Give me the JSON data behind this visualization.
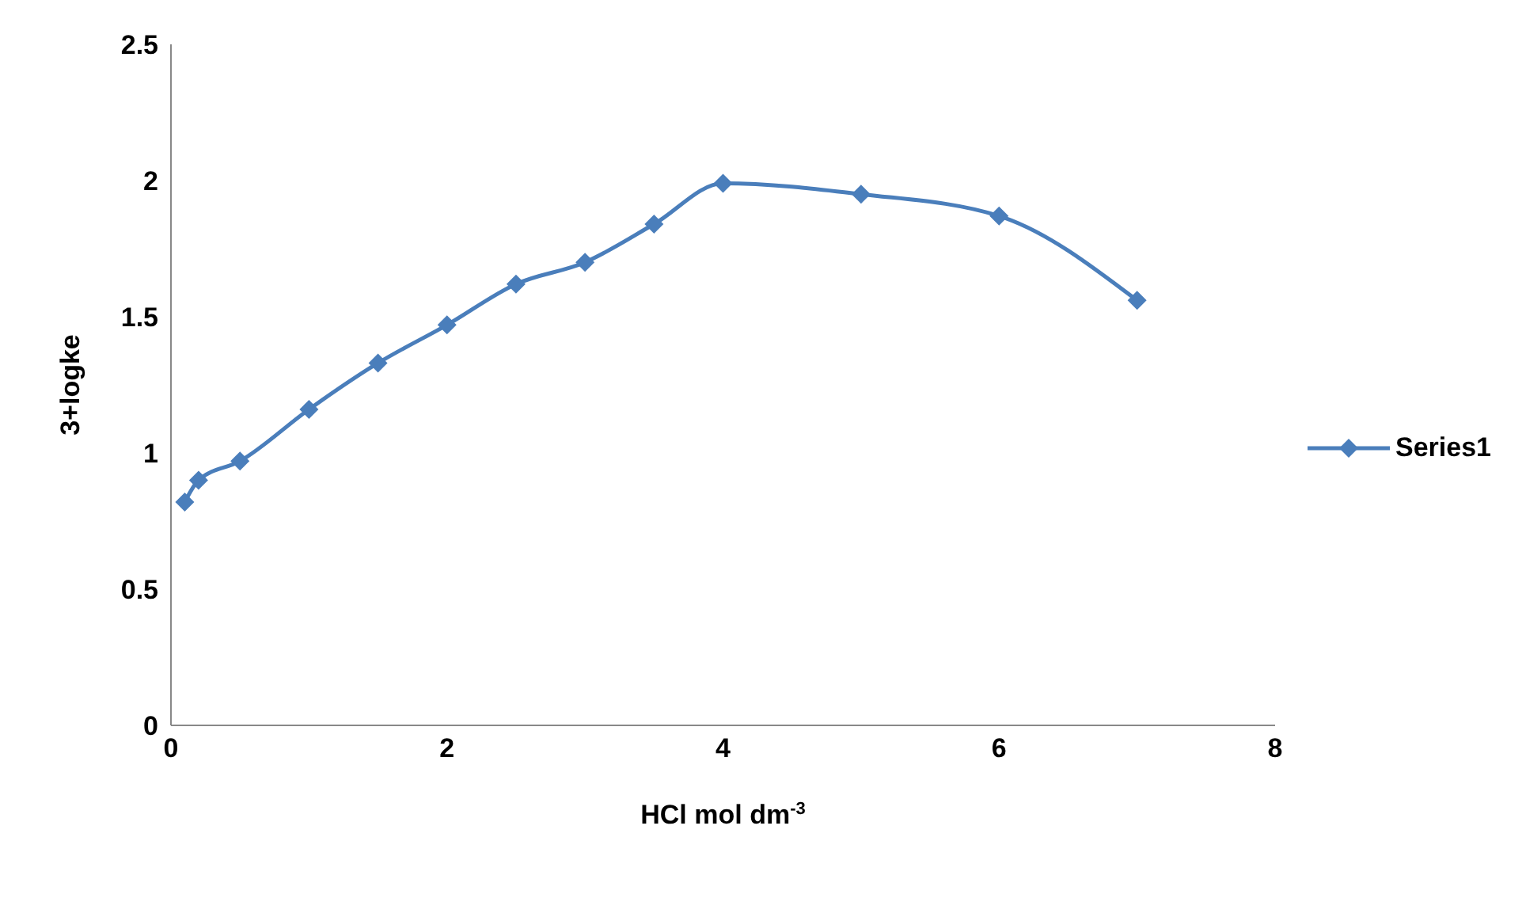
{
  "chart_data": {
    "type": "line",
    "xlabel": "HCl mol dm$^{-3}$",
    "ylabel": "3+logke",
    "x": [
      0.1,
      0.2,
      0.5,
      1,
      1.5,
      2,
      2.5,
      3,
      3.5,
      4,
      5,
      6,
      7
    ],
    "series": [
      {
        "name": "Series1",
        "color": "#4a7ebb",
        "values": [
          0.82,
          0.9,
          0.97,
          1.16,
          1.33,
          1.47,
          1.62,
          1.7,
          1.84,
          1.99,
          1.95,
          1.87,
          1.56
        ]
      }
    ],
    "xlim": [
      0,
      8
    ],
    "xticks": [
      0,
      2,
      4,
      6,
      8
    ],
    "ylim": [
      0,
      2.5
    ],
    "yticks": [
      0,
      0.5,
      1,
      1.5,
      2,
      2.5
    ],
    "grid": false,
    "legend": "right",
    "marker": "diamond",
    "line_style": "solid"
  }
}
